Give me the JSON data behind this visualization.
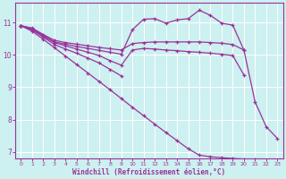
{
  "xlabel": "Windchill (Refroidissement éolien,°C)",
  "bg_color": "#cdf0f0",
  "line_color": "#993399",
  "grid_color": "#ffffff",
  "xlim": [
    -0.5,
    23.5
  ],
  "ylim": [
    6.8,
    11.6
  ],
  "yticks": [
    7,
    8,
    9,
    10,
    11
  ],
  "xticks": [
    0,
    1,
    2,
    3,
    4,
    5,
    6,
    7,
    8,
    9,
    10,
    11,
    12,
    13,
    14,
    15,
    16,
    17,
    18,
    19,
    20,
    21,
    22,
    23
  ],
  "series": [
    {
      "x": [
        0,
        1,
        2,
        3,
        4,
        5,
        6,
        7,
        8,
        9,
        10,
        11,
        12,
        13,
        14,
        15,
        16,
        17,
        18,
        19,
        20
      ],
      "y": [
        10.9,
        10.83,
        10.63,
        10.45,
        10.38,
        10.33,
        10.28,
        10.23,
        10.19,
        10.15,
        10.35,
        10.38,
        10.4,
        10.4,
        10.4,
        10.4,
        10.4,
        10.38,
        10.36,
        10.32,
        10.15
      ]
    },
    {
      "x": [
        0,
        1,
        2,
        3,
        4,
        5,
        6,
        7,
        8,
        9,
        10,
        11,
        12,
        13,
        14,
        15,
        16,
        17,
        18,
        19,
        20
      ],
      "y": [
        10.9,
        10.8,
        10.58,
        10.38,
        10.28,
        10.18,
        10.08,
        9.98,
        9.82,
        9.68,
        10.15,
        10.2,
        10.18,
        10.15,
        10.13,
        10.1,
        10.08,
        10.05,
        10.02,
        9.98,
        9.38
      ]
    },
    {
      "x": [
        0,
        1,
        2,
        3,
        4,
        5,
        6,
        7,
        8,
        9
      ],
      "y": [
        10.9,
        10.77,
        10.55,
        10.32,
        10.18,
        10.05,
        9.9,
        9.75,
        9.55,
        9.35
      ]
    },
    {
      "x": [
        0,
        1,
        2,
        3,
        4,
        5,
        6,
        7,
        8,
        9,
        10,
        11,
        12,
        13,
        14,
        15,
        16,
        17,
        18,
        19,
        20,
        21,
        22,
        23
      ],
      "y": [
        10.9,
        10.73,
        10.48,
        10.22,
        9.96,
        9.7,
        9.44,
        9.18,
        8.92,
        8.65,
        8.38,
        8.12,
        7.86,
        7.6,
        7.35,
        7.1,
        6.9,
        6.85,
        6.82,
        6.8,
        6.78,
        6.76,
        6.74,
        6.72
      ]
    },
    {
      "x": [
        0,
        1,
        2,
        3,
        4,
        5,
        6,
        7,
        8,
        9,
        10,
        11,
        12,
        13,
        14,
        15,
        16,
        17,
        18,
        19,
        20,
        21,
        22,
        23
      ],
      "y": [
        10.9,
        10.8,
        10.6,
        10.4,
        10.33,
        10.26,
        10.2,
        10.14,
        10.08,
        10.02,
        10.78,
        11.1,
        11.12,
        10.98,
        11.08,
        11.12,
        11.38,
        11.22,
        10.98,
        10.92,
        10.15,
        8.55,
        7.78,
        7.42
      ]
    }
  ]
}
